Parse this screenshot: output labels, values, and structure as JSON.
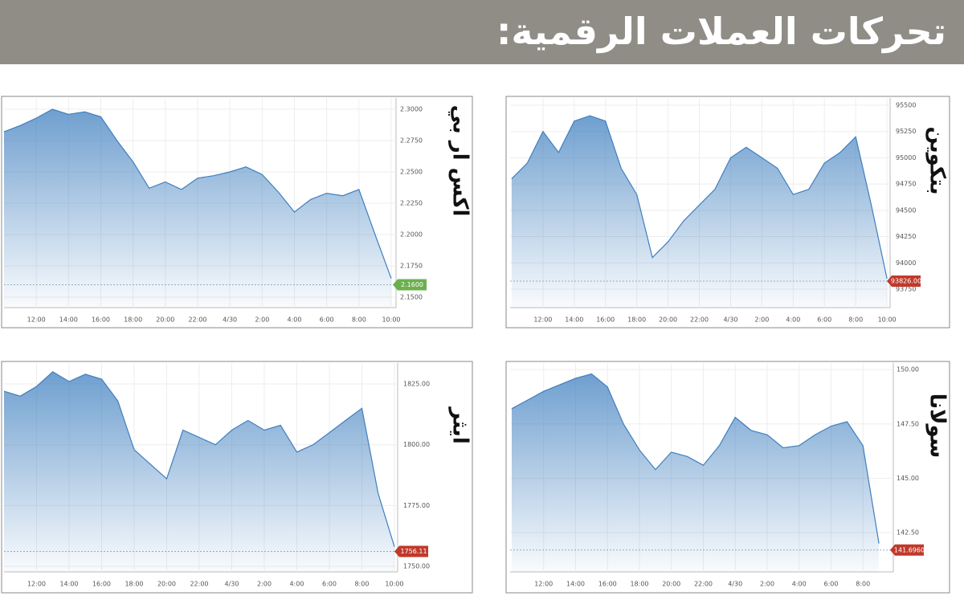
{
  "header": {
    "title": "تحركات العملات الرقمية:"
  },
  "chart_data": [
    {
      "type": "area",
      "title": "اكس ار بي",
      "color": "#3f7fbf",
      "grid": true,
      "x": [
        10,
        11,
        12,
        13,
        14,
        15,
        16,
        17,
        18,
        19,
        20,
        21,
        22,
        23,
        24,
        25,
        26,
        27,
        28,
        29,
        30,
        31,
        32,
        33,
        34
      ],
      "values": [
        2.282,
        2.287,
        2.293,
        2.3,
        2.296,
        2.298,
        2.294,
        2.275,
        2.258,
        2.237,
        2.242,
        2.236,
        2.245,
        2.247,
        2.25,
        2.254,
        2.248,
        2.234,
        2.218,
        2.228,
        2.233,
        2.231,
        2.236,
        2.2,
        2.165
      ],
      "xlim": [
        10,
        34.3
      ],
      "xticks": [
        {
          "value": 12,
          "label": "12:00"
        },
        {
          "value": 14,
          "label": "14:00"
        },
        {
          "value": 16,
          "label": "16:00"
        },
        {
          "value": 18,
          "label": "18:00"
        },
        {
          "value": 20,
          "label": "20:00"
        },
        {
          "value": 22,
          "label": "22:00"
        },
        {
          "value": 24,
          "label": "4/30"
        },
        {
          "value": 26,
          "label": "2:00"
        },
        {
          "value": 28,
          "label": "4:00"
        },
        {
          "value": 30,
          "label": "6:00"
        },
        {
          "value": 32,
          "label": "8:00"
        },
        {
          "value": 34,
          "label": "10:00"
        }
      ],
      "ylim": [
        2.1417,
        2.309
      ],
      "yticks": [
        {
          "value": 2.15,
          "label": "2.1500"
        },
        {
          "value": 2.175,
          "label": "2.1750"
        },
        {
          "value": 2.2,
          "label": "2.2000"
        },
        {
          "value": 2.225,
          "label": "2.2250"
        },
        {
          "value": 2.25,
          "label": "2.2500"
        },
        {
          "value": 2.275,
          "label": "2.2750"
        },
        {
          "value": 2.3,
          "label": "2.3000"
        }
      ],
      "last_value": {
        "value": 2.16,
        "label": "2.1600",
        "color": "#6ab04c"
      }
    },
    {
      "type": "area",
      "title": "بتكوين",
      "color": "#3f7fbf",
      "grid": true,
      "x": [
        10,
        11,
        12,
        13,
        14,
        15,
        16,
        17,
        18,
        19,
        20,
        21,
        22,
        23,
        24,
        25,
        26,
        27,
        28,
        29,
        30,
        31,
        32,
        33,
        34
      ],
      "values": [
        94800,
        94950,
        95250,
        95050,
        95350,
        95400,
        95350,
        94900,
        94650,
        94050,
        94200,
        94400,
        94550,
        94700,
        95000,
        95100,
        95000,
        94900,
        94650,
        94700,
        94950,
        95050,
        95200,
        94550,
        93850
      ],
      "xlim": [
        9.9,
        34.2
      ],
      "xticks": [
        {
          "value": 12,
          "label": "12:00"
        },
        {
          "value": 14,
          "label": "14:00"
        },
        {
          "value": 16,
          "label": "16:00"
        },
        {
          "value": 18,
          "label": "18:00"
        },
        {
          "value": 20,
          "label": "20:00"
        },
        {
          "value": 22,
          "label": "22:00"
        },
        {
          "value": 24,
          "label": "4/30"
        },
        {
          "value": 26,
          "label": "2:00"
        },
        {
          "value": 28,
          "label": "4:00"
        },
        {
          "value": 30,
          "label": "6:00"
        },
        {
          "value": 32,
          "label": "8:00"
        },
        {
          "value": 34,
          "label": "10:00"
        }
      ],
      "ylim": [
        93574,
        95569
      ],
      "yticks": [
        93750,
        94000,
        94250,
        94500,
        94750,
        95000,
        95250,
        95500
      ],
      "last_value": {
        "value": 93826,
        "label": "93826.00",
        "color": "#c0392b"
      }
    },
    {
      "type": "area",
      "title": "ايثر",
      "color": "#3f7fbf",
      "grid": true,
      "x": [
        10,
        11,
        12,
        13,
        14,
        15,
        16,
        17,
        18,
        19,
        20,
        21,
        22,
        23,
        24,
        25,
        26,
        27,
        28,
        29,
        30,
        31,
        32,
        33,
        34
      ],
      "values": [
        1822,
        1820,
        1824,
        1830,
        1826,
        1829,
        1827,
        1818,
        1798,
        1792,
        1786,
        1806,
        1803,
        1800,
        1806,
        1810,
        1806,
        1808,
        1797,
        1800,
        1805,
        1810,
        1815,
        1780,
        1758
      ],
      "xlim": [
        10,
        34.2
      ],
      "xticks": [
        {
          "value": 12,
          "label": "12:00"
        },
        {
          "value": 14,
          "label": "14:00"
        },
        {
          "value": 16,
          "label": "16:00"
        },
        {
          "value": 18,
          "label": "18:00"
        },
        {
          "value": 20,
          "label": "20:00"
        },
        {
          "value": 22,
          "label": "22:00"
        },
        {
          "value": 24,
          "label": "4/30"
        },
        {
          "value": 26,
          "label": "2:00"
        },
        {
          "value": 28,
          "label": "4:00"
        },
        {
          "value": 30,
          "label": "6:00"
        },
        {
          "value": 32,
          "label": "8:00"
        },
        {
          "value": 34,
          "label": "10:00"
        }
      ],
      "ylim": [
        1747.7,
        1833.6
      ],
      "yticks": [
        {
          "value": 1750,
          "label": "1750.00"
        },
        {
          "value": 1775,
          "label": "1775.00"
        },
        {
          "value": 1800,
          "label": "1800.00"
        },
        {
          "value": 1825,
          "label": "1825.00"
        }
      ],
      "last_value": {
        "value": 1756.11,
        "label": "1756.11",
        "color": "#c0392b"
      }
    },
    {
      "type": "area",
      "title": "سولانا",
      "color": "#3f7fbf",
      "grid": true,
      "x": [
        10,
        11,
        12,
        13,
        14,
        15,
        16,
        17,
        18,
        19,
        20,
        21,
        22,
        23,
        24,
        25,
        26,
        27,
        28,
        29,
        30,
        31,
        32,
        33
      ],
      "values": [
        148.2,
        148.6,
        149.0,
        149.3,
        149.6,
        149.8,
        149.2,
        147.5,
        146.3,
        145.4,
        146.2,
        146.0,
        145.6,
        146.5,
        147.8,
        147.2,
        147.0,
        146.4,
        146.5,
        147.0,
        147.4,
        147.6,
        146.5,
        142.0
      ],
      "xlim": [
        9.9,
        33.9
      ],
      "xticks": [
        {
          "value": 12,
          "label": "12:00"
        },
        {
          "value": 14,
          "label": "14:00"
        },
        {
          "value": 16,
          "label": "16:00"
        },
        {
          "value": 18,
          "label": "18:00"
        },
        {
          "value": 20,
          "label": "20:00"
        },
        {
          "value": 22,
          "label": "22:00"
        },
        {
          "value": 24,
          "label": "4/30"
        },
        {
          "value": 26,
          "label": "2:00"
        },
        {
          "value": 28,
          "label": "4:00"
        },
        {
          "value": 30,
          "label": "6:00"
        },
        {
          "value": 32,
          "label": "8:00"
        }
      ],
      "ylim": [
        140.69,
        150.3
      ],
      "yticks": [
        {
          "value": 142.5,
          "label": "142.50"
        },
        {
          "value": 145,
          "label": "145.00"
        },
        {
          "value": 147.5,
          "label": "147.50"
        },
        {
          "value": 150,
          "label": "150.00"
        }
      ],
      "last_value": {
        "value": 141.696,
        "label": "141.6960",
        "color": "#c0392b"
      }
    }
  ]
}
